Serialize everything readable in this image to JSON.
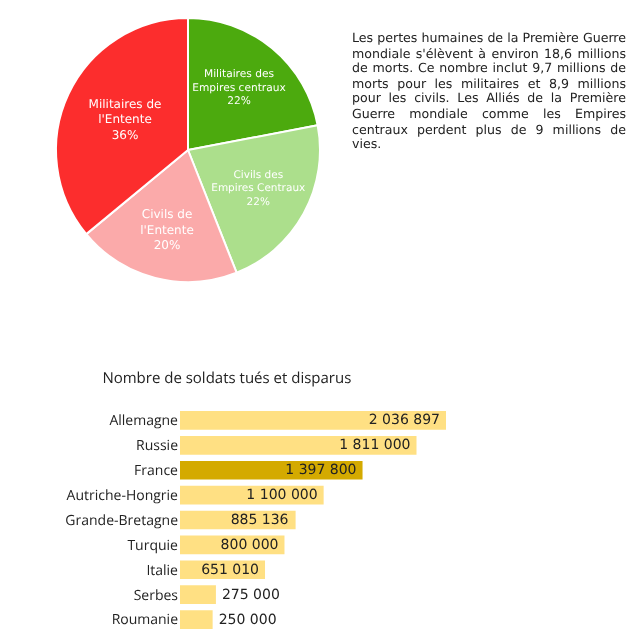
{
  "chart_data": [
    {
      "type": "pie",
      "categories": [
        "Militaires des Empires centraux",
        "Civils des Empires Centraux",
        "Civils de l'Entente",
        "Militaires de l'Entente"
      ],
      "values": [
        22,
        22,
        20,
        36
      ],
      "value_labels": [
        "22%",
        "22%",
        "20%",
        "36%"
      ],
      "colors": [
        "#4caa0e",
        "#acdf8c",
        "#fbaaaa",
        "#fc2d2d"
      ],
      "legend": false
    },
    {
      "type": "other",
      "annotations": [
        "Les pertes humaines de la Première Guerre mondiale s'élèvent à environ 18,6 millions de morts. Ce nombre inclut 9,7 millions de morts pour les militaires et 8,9 millions pour les civils. Les Alliés de la Première Guerre mondiale comme les Empires centraux perdent plus de 9 millions de vies."
      ]
    },
    {
      "type": "bar",
      "orientation": "horizontal",
      "title": "Nombre de soldats tués et disparus",
      "categories": [
        "Allemagne",
        "Russie",
        "France",
        "Autriche-Hongrie",
        "Grande-Bretagne",
        "Turquie",
        "Italie",
        "Serbes",
        "Roumanie"
      ],
      "values": [
        2036897,
        1811000,
        1397800,
        1100000,
        885136,
        800000,
        651010,
        275000,
        250000
      ],
      "value_labels": [
        "2 036 897",
        "1 811 000",
        "1 397 800",
        "1 100 000",
        "885 136",
        "800 000",
        "651 010",
        "275 000",
        "250 000"
      ],
      "colors": [
        "#ffe083",
        "#ffe083",
        "#d4aa00",
        "#ffe083",
        "#ffe083",
        "#ffe083",
        "#ffe083",
        "#ffe083",
        "#ffe083"
      ],
      "legend": false
    }
  ]
}
